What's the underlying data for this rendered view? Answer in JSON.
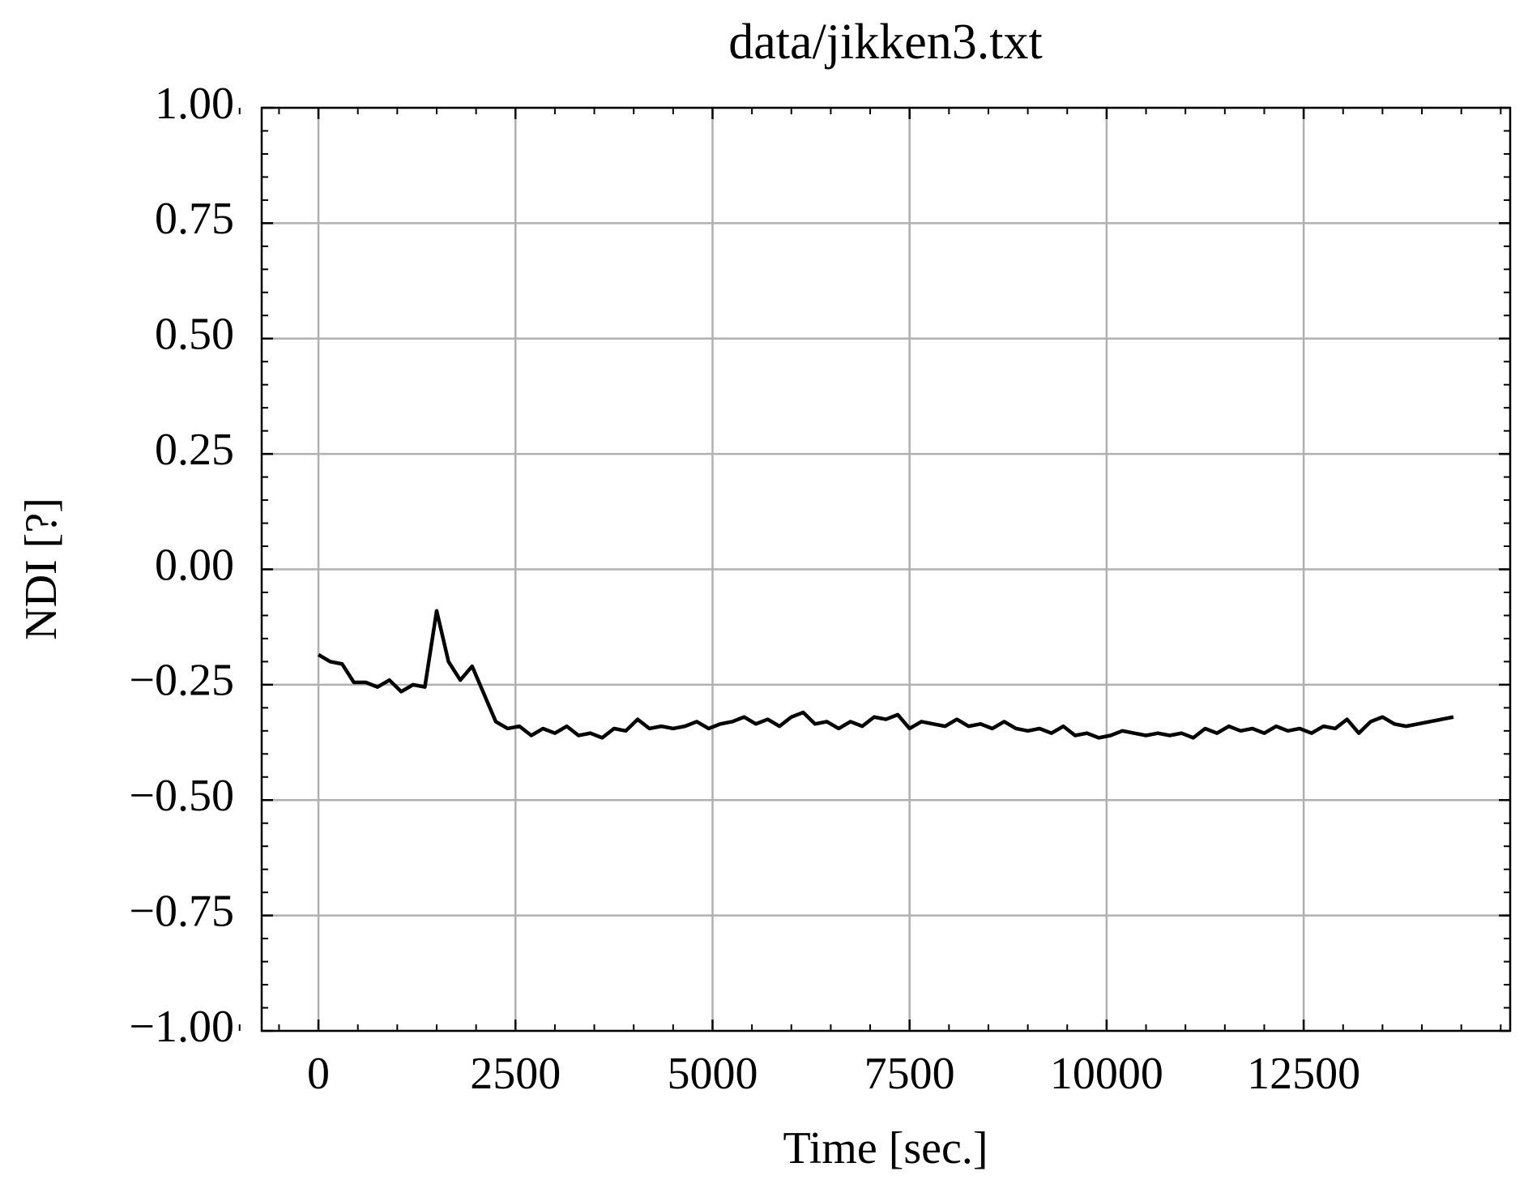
{
  "chart_data": {
    "type": "line",
    "title": "data/jikken3.txt",
    "x_label": "Time [sec.]",
    "y_label": "NDI [?]",
    "xlim": [
      -720,
      15120
    ],
    "ylim": [
      -1,
      1
    ],
    "xticks": [
      0,
      2500,
      5000,
      7500,
      10000,
      12500
    ],
    "yticks": [
      {
        "value": -1,
        "label": "−1.00"
      },
      {
        "value": -0.75,
        "label": "−0.75"
      },
      {
        "value": -0.5,
        "label": "−0.50"
      },
      {
        "value": -0.25,
        "label": "−0.25"
      },
      {
        "value": 0,
        "label": "0.00"
      },
      {
        "value": 0.25,
        "label": "0.25"
      },
      {
        "value": 0.5,
        "label": "0.50"
      },
      {
        "value": 0.75,
        "label": "0.75"
      },
      {
        "value": 1,
        "label": "1.00"
      }
    ],
    "grid": true,
    "x": [
      0,
      150,
      300,
      450,
      600,
      750,
      900,
      1050,
      1200,
      1350,
      1500,
      1650,
      1800,
      1950,
      2100,
      2250,
      2400,
      2550,
      2700,
      2850,
      3000,
      3150,
      3300,
      3450,
      3600,
      3750,
      3900,
      4050,
      4200,
      4350,
      4500,
      4650,
      4800,
      4950,
      5100,
      5250,
      5400,
      5550,
      5700,
      5850,
      6000,
      6150,
      6300,
      6450,
      6600,
      6750,
      6900,
      7050,
      7200,
      7350,
      7500,
      7650,
      7800,
      7950,
      8100,
      8250,
      8400,
      8550,
      8700,
      8850,
      9000,
      9150,
      9300,
      9450,
      9600,
      9750,
      9900,
      10050,
      10200,
      10350,
      10500,
      10650,
      10800,
      10950,
      11100,
      11250,
      11400,
      11550,
      11700,
      11850,
      12000,
      12150,
      12300,
      12450,
      12600,
      12750,
      12900,
      13050,
      13200,
      13350,
      13500,
      13650,
      13800,
      13950,
      14100,
      14250,
      14400
    ],
    "series": [
      {
        "color": "#000000",
        "values": [
          -0.185,
          -0.2,
          -0.205,
          -0.245,
          -0.245,
          -0.255,
          -0.24,
          -0.265,
          -0.25,
          -0.255,
          -0.09,
          -0.2,
          -0.24,
          -0.21,
          -0.27,
          -0.33,
          -0.345,
          -0.34,
          -0.36,
          -0.345,
          -0.355,
          -0.34,
          -0.36,
          -0.355,
          -0.365,
          -0.345,
          -0.35,
          -0.325,
          -0.345,
          -0.34,
          -0.345,
          -0.34,
          -0.33,
          -0.345,
          -0.335,
          -0.33,
          -0.32,
          -0.335,
          -0.325,
          -0.34,
          -0.32,
          -0.31,
          -0.335,
          -0.33,
          -0.345,
          -0.33,
          -0.34,
          -0.32,
          -0.325,
          -0.315,
          -0.345,
          -0.33,
          -0.335,
          -0.34,
          -0.325,
          -0.34,
          -0.335,
          -0.345,
          -0.33,
          -0.345,
          -0.35,
          -0.345,
          -0.355,
          -0.34,
          -0.36,
          -0.355,
          -0.365,
          -0.36,
          -0.35,
          -0.355,
          -0.36,
          -0.355,
          -0.36,
          -0.355,
          -0.365,
          -0.345,
          -0.355,
          -0.34,
          -0.35,
          -0.345,
          -0.355,
          -0.34,
          -0.35,
          -0.345,
          -0.355,
          -0.34,
          -0.345,
          -0.325,
          -0.355,
          -0.33,
          -0.32,
          -0.335,
          -0.34,
          -0.335,
          -0.33,
          -0.325,
          -0.32
        ]
      }
    ]
  }
}
